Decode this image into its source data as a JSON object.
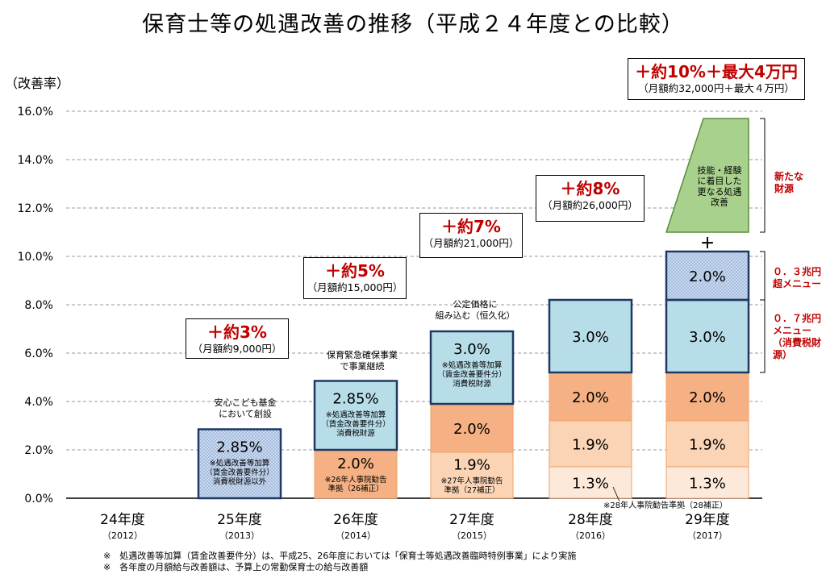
{
  "chart_data": {
    "type": "bar",
    "title": "保育士等の処遇改善の推移（平成２４年度との比較）",
    "ylabel": "（改善率）",
    "ylim": [
      0,
      16
    ],
    "yticks": [
      "0.0%",
      "2.0%",
      "4.0%",
      "6.0%",
      "8.0%",
      "10.0%",
      "12.0%",
      "14.0%",
      "16.0%"
    ],
    "grid": true,
    "categories": [
      {
        "label": "24年度",
        "year": "（2012）"
      },
      {
        "label": "25年度",
        "year": "（2013）"
      },
      {
        "label": "26年度",
        "year": "（2014）"
      },
      {
        "label": "27年度",
        "year": "（2015）"
      },
      {
        "label": "28年度",
        "year": "（2016）"
      },
      {
        "label": "29年度",
        "year": "（2017）"
      }
    ],
    "stacks": [
      [],
      [
        {
          "value": 2.85,
          "label": "2.85%",
          "sub": "※処遇改善等加算\n（賃金改善要件分）\n消費税財源以外",
          "kind": "dotted"
        }
      ],
      [
        {
          "value": 2.0,
          "label": "2.0%",
          "sub": "※26年人事院勧告\n準拠（26補正）",
          "kind": "orange"
        },
        {
          "value": 2.85,
          "label": "2.85%",
          "sub": "※処遇改善等加算\n（賃金改善要件分）\n消費税財源",
          "kind": "blue"
        }
      ],
      [
        {
          "value": 1.9,
          "label": "1.9%",
          "sub": "※27年人事院勧告\n準拠（27補正）",
          "kind": "light"
        },
        {
          "value": 2.0,
          "label": "2.0%",
          "kind": "orange"
        },
        {
          "value": 3.0,
          "label": "3.0%",
          "sub": "※処遇改善等加算\n（賃金改善要件分）\n消費税財源",
          "kind": "blue"
        }
      ],
      [
        {
          "value": 1.3,
          "label": "1.3%",
          "kind": "pale"
        },
        {
          "value": 1.9,
          "label": "1.9%",
          "kind": "light"
        },
        {
          "value": 2.0,
          "label": "2.0%",
          "kind": "orange"
        },
        {
          "value": 3.0,
          "label": "3.0%",
          "kind": "blue"
        }
      ],
      [
        {
          "value": 1.3,
          "label": "1.3%",
          "kind": "pale"
        },
        {
          "value": 1.9,
          "label": "1.9%",
          "kind": "light"
        },
        {
          "value": 2.0,
          "label": "2.0%",
          "kind": "orange"
        },
        {
          "value": 3.0,
          "label": "3.0%",
          "kind": "blue"
        },
        {
          "value": 2.0,
          "label": "2.0%",
          "kind": "dotted"
        }
      ]
    ],
    "extra_2017": {
      "from": 11,
      "to": 15.7,
      "label": "技能・経験\nに着目した\n更なる処遇\n改善",
      "plus": "＋"
    },
    "colors": {
      "blue": "#b7dde8",
      "orange": "#f5b183",
      "light": "#fad4b4",
      "pale": "#fde9d9",
      "dotted": "#c9d9ef",
      "green": "#a9d18e",
      "frame": "#1f3864",
      "red": "#c00000"
    }
  },
  "callouts": [
    {
      "big": "＋約3%",
      "small": "（月額約9,000円）"
    },
    {
      "big": "＋約5%",
      "small": "（月額約15,000円）"
    },
    {
      "big": "＋約7%",
      "small": "（月額約21,000円）"
    },
    {
      "big": "＋約8%",
      "small": "（月額約26,000円）"
    },
    {
      "big": "＋約10%＋最大4万円",
      "small": "（月額約32,000円＋最大４万円）"
    }
  ],
  "notes": {
    "fund_2013": "安心こども基金\nにおいて創設",
    "cont_2014": "保育緊急確保事業\nで事業継続",
    "price_2015": "公定価格に\n組み込む（恒久化）",
    "hr_2016": "※28年人事院勧告準拠（28補正）"
  },
  "side_labels": {
    "new_source": "新たな\n財源",
    "super_menu": "０．３兆円\n超メニュー",
    "menu_07": "０．７兆円\nメニュー\n（消費税財\n源）"
  },
  "footnotes": [
    "※　処遇改善等加算（賃金改善要件分）は、平成25、26年度においては「保育士等処遇改善臨時特例事業」により実施",
    "※　各年度の月額給与改善額は、予算上の常勤保育士の給与改善額"
  ]
}
